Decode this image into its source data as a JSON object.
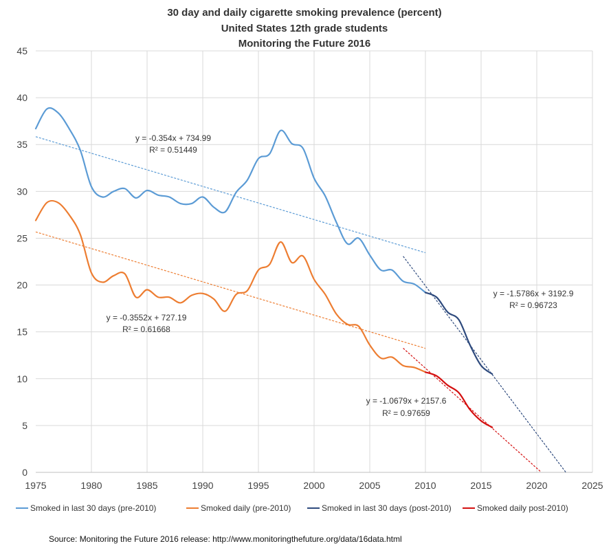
{
  "chart_data": {
    "type": "line",
    "title": [
      "30 day and daily cigarette smoking prevalence (percent)",
      "United States 12th grade  students",
      "Monitoring the Future 2016"
    ],
    "xlim": [
      1975,
      2025
    ],
    "ylim": [
      0,
      45
    ],
    "x_ticks": [
      1975,
      1980,
      1985,
      1990,
      1995,
      2000,
      2005,
      2010,
      2015,
      2020,
      2025
    ],
    "y_ticks": [
      0,
      5,
      10,
      15,
      20,
      25,
      30,
      35,
      40,
      45
    ],
    "grid": "horizontal and vertical",
    "legend_position": "bottom",
    "series": [
      {
        "name": "Smoked in last 30 days (pre-2010)",
        "color": "#5b9bd5",
        "x": [
          1975,
          1976,
          1977,
          1978,
          1979,
          1980,
          1981,
          1982,
          1983,
          1984,
          1985,
          1986,
          1987,
          1988,
          1989,
          1990,
          1991,
          1992,
          1993,
          1994,
          1995,
          1996,
          1997,
          1998,
          1999,
          2000,
          2001,
          2002,
          2003,
          2004,
          2005,
          2006,
          2007,
          2008,
          2009,
          2010
        ],
        "y": [
          36.7,
          38.8,
          38.4,
          36.7,
          34.4,
          30.5,
          29.4,
          30.0,
          30.3,
          29.3,
          30.1,
          29.6,
          29.4,
          28.7,
          28.7,
          29.4,
          28.3,
          27.8,
          29.9,
          31.2,
          33.5,
          34.0,
          36.5,
          35.1,
          34.6,
          31.4,
          29.5,
          26.7,
          24.4,
          25.0,
          23.2,
          21.6,
          21.6,
          20.4,
          20.1,
          19.2
        ]
      },
      {
        "name": "Smoked daily (pre-2010)",
        "color": "#ed7d31",
        "x": [
          1975,
          1976,
          1977,
          1978,
          1979,
          1980,
          1981,
          1982,
          1983,
          1984,
          1985,
          1986,
          1987,
          1988,
          1989,
          1990,
          1991,
          1992,
          1993,
          1994,
          1995,
          1996,
          1997,
          1998,
          1999,
          2000,
          2001,
          2002,
          2003,
          2004,
          2005,
          2006,
          2007,
          2008,
          2009,
          2010
        ],
        "y": [
          26.9,
          28.8,
          28.8,
          27.5,
          25.4,
          21.3,
          20.3,
          21.0,
          21.2,
          18.7,
          19.5,
          18.7,
          18.7,
          18.1,
          18.9,
          19.1,
          18.5,
          17.2,
          19.0,
          19.4,
          21.6,
          22.2,
          24.6,
          22.4,
          23.1,
          20.6,
          19.0,
          16.9,
          15.8,
          15.6,
          13.6,
          12.2,
          12.3,
          11.4,
          11.2,
          10.7
        ]
      },
      {
        "name": "Smoked in last 30 days (post-2010)",
        "color": "#2e4a7d",
        "x": [
          2010,
          2011,
          2012,
          2013,
          2014,
          2015,
          2016
        ],
        "y": [
          19.2,
          18.7,
          17.1,
          16.3,
          13.6,
          11.4,
          10.5
        ]
      },
      {
        "name": "Smoked daily post-2010)",
        "color": "#d40f0f",
        "x": [
          2010,
          2011,
          2012,
          2013,
          2014,
          2015,
          2016
        ],
        "y": [
          10.7,
          10.3,
          9.3,
          8.5,
          6.7,
          5.5,
          4.8
        ]
      }
    ],
    "trendlines": [
      {
        "equation": "y = -0.354x + 734.99",
        "r2": "R² = 0.51449",
        "slope": -0.354,
        "intercept": 734.99,
        "x_range": [
          1975,
          2010
        ],
        "color": "#5b9bd5"
      },
      {
        "equation": "y = -0.3552x + 727.19",
        "r2": "R² = 0.61668",
        "slope": -0.3552,
        "intercept": 727.19,
        "x_range": [
          1975,
          2010
        ],
        "color": "#ed7d31"
      },
      {
        "equation": "y = -1.5786x + 3192.9",
        "r2": "R² = 0.96723",
        "slope": -1.5786,
        "intercept": 3192.9,
        "x_range": [
          2008,
          2022.6
        ],
        "color": "#2e4a7d"
      },
      {
        "equation": "y = -1.0679x + 2157.6",
        "r2": "R² = 0.97659",
        "slope": -1.0679,
        "intercept": 2157.6,
        "x_range": [
          2008,
          2020.4
        ],
        "color": "#d40f0f"
      }
    ],
    "source": "Source: Monitoring the Future 2016 release: http://www.monitoringthefuture.org/data/16data.html"
  }
}
